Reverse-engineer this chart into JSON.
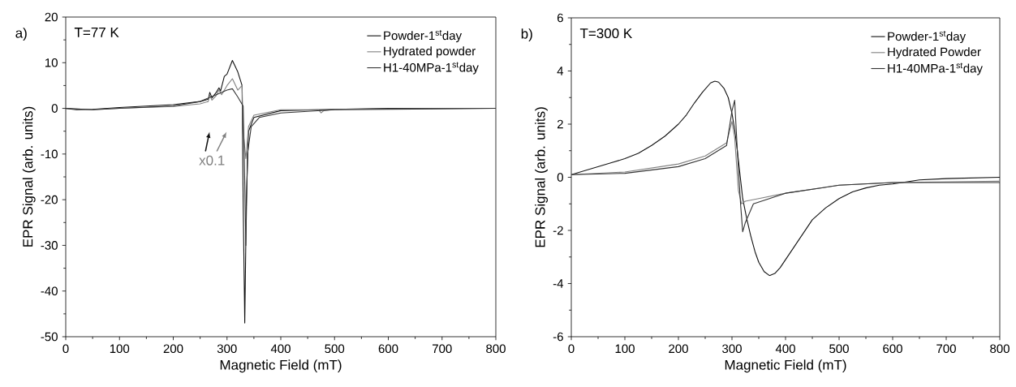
{
  "chart_data": [
    {
      "type": "line",
      "title": "T=77 K",
      "xlabel": "Magnetic Field (mT)",
      "ylabel": "EPR Signal (arb. units)",
      "xlim": [
        0,
        800
      ],
      "ylim": [
        -50,
        20
      ],
      "xticks": [
        0,
        100,
        200,
        300,
        400,
        500,
        600,
        700,
        800
      ],
      "yticks": [
        -50,
        -40,
        -30,
        -20,
        -10,
        0,
        10,
        20
      ],
      "legend": "top right",
      "line_style": "solid",
      "marker": "none",
      "annotations": [
        "a)",
        "x0.1"
      ],
      "series": [
        {
          "name": "Powder-1$^{st}$day",
          "color": "#111111",
          "x": [
            0,
            20,
            50,
            100,
            200,
            250,
            265,
            268,
            272,
            280,
            285,
            288,
            295,
            300,
            310,
            320,
            328,
            330,
            333,
            336,
            340,
            350,
            400,
            500,
            600,
            800
          ],
          "values": [
            0,
            -0.3,
            -0.2,
            0.2,
            0.8,
            1.5,
            2,
            3.5,
            2.3,
            3.5,
            4.5,
            3.8,
            7,
            7.5,
            10.5,
            8,
            5,
            -20,
            -47,
            -20,
            -5,
            -2,
            -0.5,
            -0.2,
            0,
            0
          ]
        },
        {
          "name": "Hydrated powder",
          "color": "#808080",
          "x": [
            0,
            50,
            100,
            200,
            250,
            265,
            268,
            272,
            280,
            285,
            290,
            300,
            310,
            320,
            328,
            330,
            335,
            340,
            350,
            400,
            470,
            475,
            480,
            500,
            800
          ],
          "values": [
            0,
            -0.3,
            0,
            0.4,
            1,
            1.5,
            3,
            1.8,
            2.8,
            4,
            3,
            5,
            6.5,
            4,
            5,
            -5,
            -11,
            -4,
            -1.5,
            -0.3,
            -0.3,
            -1,
            -0.5,
            -0.2,
            0
          ]
        },
        {
          "name": "H1-40MPa-1$^{st}$day",
          "color": "#333333",
          "x": [
            0,
            50,
            100,
            200,
            250,
            280,
            300,
            310,
            320,
            330,
            332,
            335,
            338,
            345,
            360,
            400,
            500,
            800
          ],
          "values": [
            0,
            -0.3,
            0,
            0.5,
            1.5,
            3,
            4,
            4.3,
            2.5,
            0.5,
            -10,
            -30,
            -10,
            -4,
            -2,
            -1,
            -0.3,
            0
          ]
        }
      ]
    },
    {
      "type": "line",
      "title": "T=300 K",
      "xlabel": "Magnetic Field (mT)",
      "ylabel": "EPR Signal (arb. units)",
      "xlim": [
        0,
        800
      ],
      "ylim": [
        -6,
        6
      ],
      "xticks": [
        0,
        100,
        200,
        300,
        400,
        500,
        600,
        700,
        800
      ],
      "yticks": [
        -6,
        -4,
        -2,
        0,
        2,
        4,
        6
      ],
      "legend": "top right",
      "line_style": "solid",
      "marker": "none",
      "annotations": [
        "b)"
      ],
      "series": [
        {
          "name": "Powder-1$^{st}$day",
          "color": "#111111",
          "x": [
            0,
            25,
            50,
            75,
            100,
            125,
            150,
            175,
            200,
            215,
            230,
            245,
            260,
            268,
            275,
            285,
            293,
            300,
            305,
            310,
            315,
            320,
            328,
            335,
            343,
            350,
            360,
            370,
            380,
            390,
            405,
            420,
            435,
            450,
            475,
            500,
            525,
            550,
            575,
            600,
            650,
            700,
            800
          ],
          "values": [
            0.1,
            0.25,
            0.4,
            0.55,
            0.7,
            0.9,
            1.2,
            1.55,
            2,
            2.35,
            2.8,
            3.2,
            3.55,
            3.62,
            3.58,
            3.35,
            3,
            2.4,
            1.8,
            1,
            0.1,
            -0.8,
            -1.6,
            -2.2,
            -2.8,
            -3.2,
            -3.55,
            -3.7,
            -3.62,
            -3.4,
            -2.95,
            -2.5,
            -2.05,
            -1.6,
            -1.15,
            -0.8,
            -0.55,
            -0.4,
            -0.3,
            -0.25,
            -0.1,
            -0.05,
            0
          ]
        },
        {
          "name": "Hydrated Powder",
          "color": "#808080",
          "x": [
            0,
            100,
            200,
            250,
            290,
            300,
            305,
            312,
            318,
            325,
            350,
            400,
            500,
            600,
            800
          ],
          "values": [
            0.1,
            0.2,
            0.5,
            0.8,
            1.3,
            2.1,
            1.5,
            -0.5,
            -1,
            -0.9,
            -0.8,
            -0.6,
            -0.3,
            -0.2,
            -0.15
          ]
        },
        {
          "name": "H1-40MPa-1$^{st}$day",
          "color": "#333333",
          "x": [
            0,
            100,
            200,
            250,
            290,
            300,
            305,
            310,
            316,
            320,
            325,
            340,
            370,
            400,
            500,
            600,
            700,
            800
          ],
          "values": [
            0.1,
            0.15,
            0.4,
            0.7,
            1.2,
            2.5,
            2.9,
            1,
            -1,
            -2.05,
            -1.7,
            -1,
            -0.8,
            -0.6,
            -0.3,
            -0.2,
            -0.2,
            -0.2
          ]
        }
      ]
    }
  ]
}
